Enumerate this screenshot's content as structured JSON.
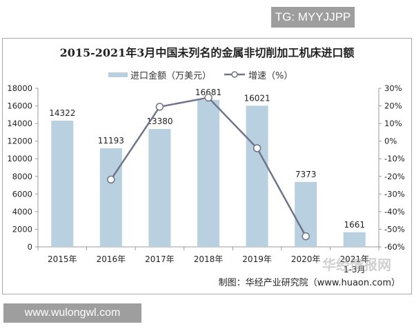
{
  "watermark_top": "TG: MYYJJPP",
  "watermark_bottom": "www.wulongwl.com",
  "logo_watermark": "华经情报网",
  "source": "制图：华经产业研究院（www.huaon.com）",
  "chart_data": {
    "type": "bar+line",
    "title": "2015-2021年3月中国未列名的金属非切削加工机床进口额",
    "categories": [
      "2015年",
      "2016年",
      "2017年",
      "2018年",
      "2019年",
      "2020年",
      "2021年"
    ],
    "category_sublabels": [
      "",
      "",
      "",
      "",
      "",
      "",
      "1-3月"
    ],
    "series": [
      {
        "name": "进口金额（万美元）",
        "type": "bar",
        "axis": "left",
        "color": "#b8d0e0",
        "values": [
          14322,
          11193,
          13380,
          16681,
          16021,
          7373,
          1661
        ],
        "labels": [
          "14322",
          "11193",
          "13380",
          "16681",
          "16021",
          "7373",
          "1661"
        ]
      },
      {
        "name": "增速（%）",
        "type": "line",
        "axis": "right",
        "color": "#6e7489",
        "values": [
          null,
          -21.8,
          19.5,
          24.7,
          -4.0,
          -54.0,
          null
        ]
      }
    ],
    "left_axis": {
      "ylim": [
        0,
        18000
      ],
      "ticks": [
        "0",
        "2000",
        "4000",
        "6000",
        "8000",
        "10000",
        "12000",
        "14000",
        "16000",
        "18000"
      ]
    },
    "right_axis": {
      "ylim": [
        -60,
        30
      ],
      "ticks": [
        "-60%",
        "-50%",
        "-40%",
        "-30%",
        "-20%",
        "-10%",
        "0%",
        "10%",
        "20%",
        "30%"
      ]
    },
    "legend": "top-center",
    "grid": false
  }
}
